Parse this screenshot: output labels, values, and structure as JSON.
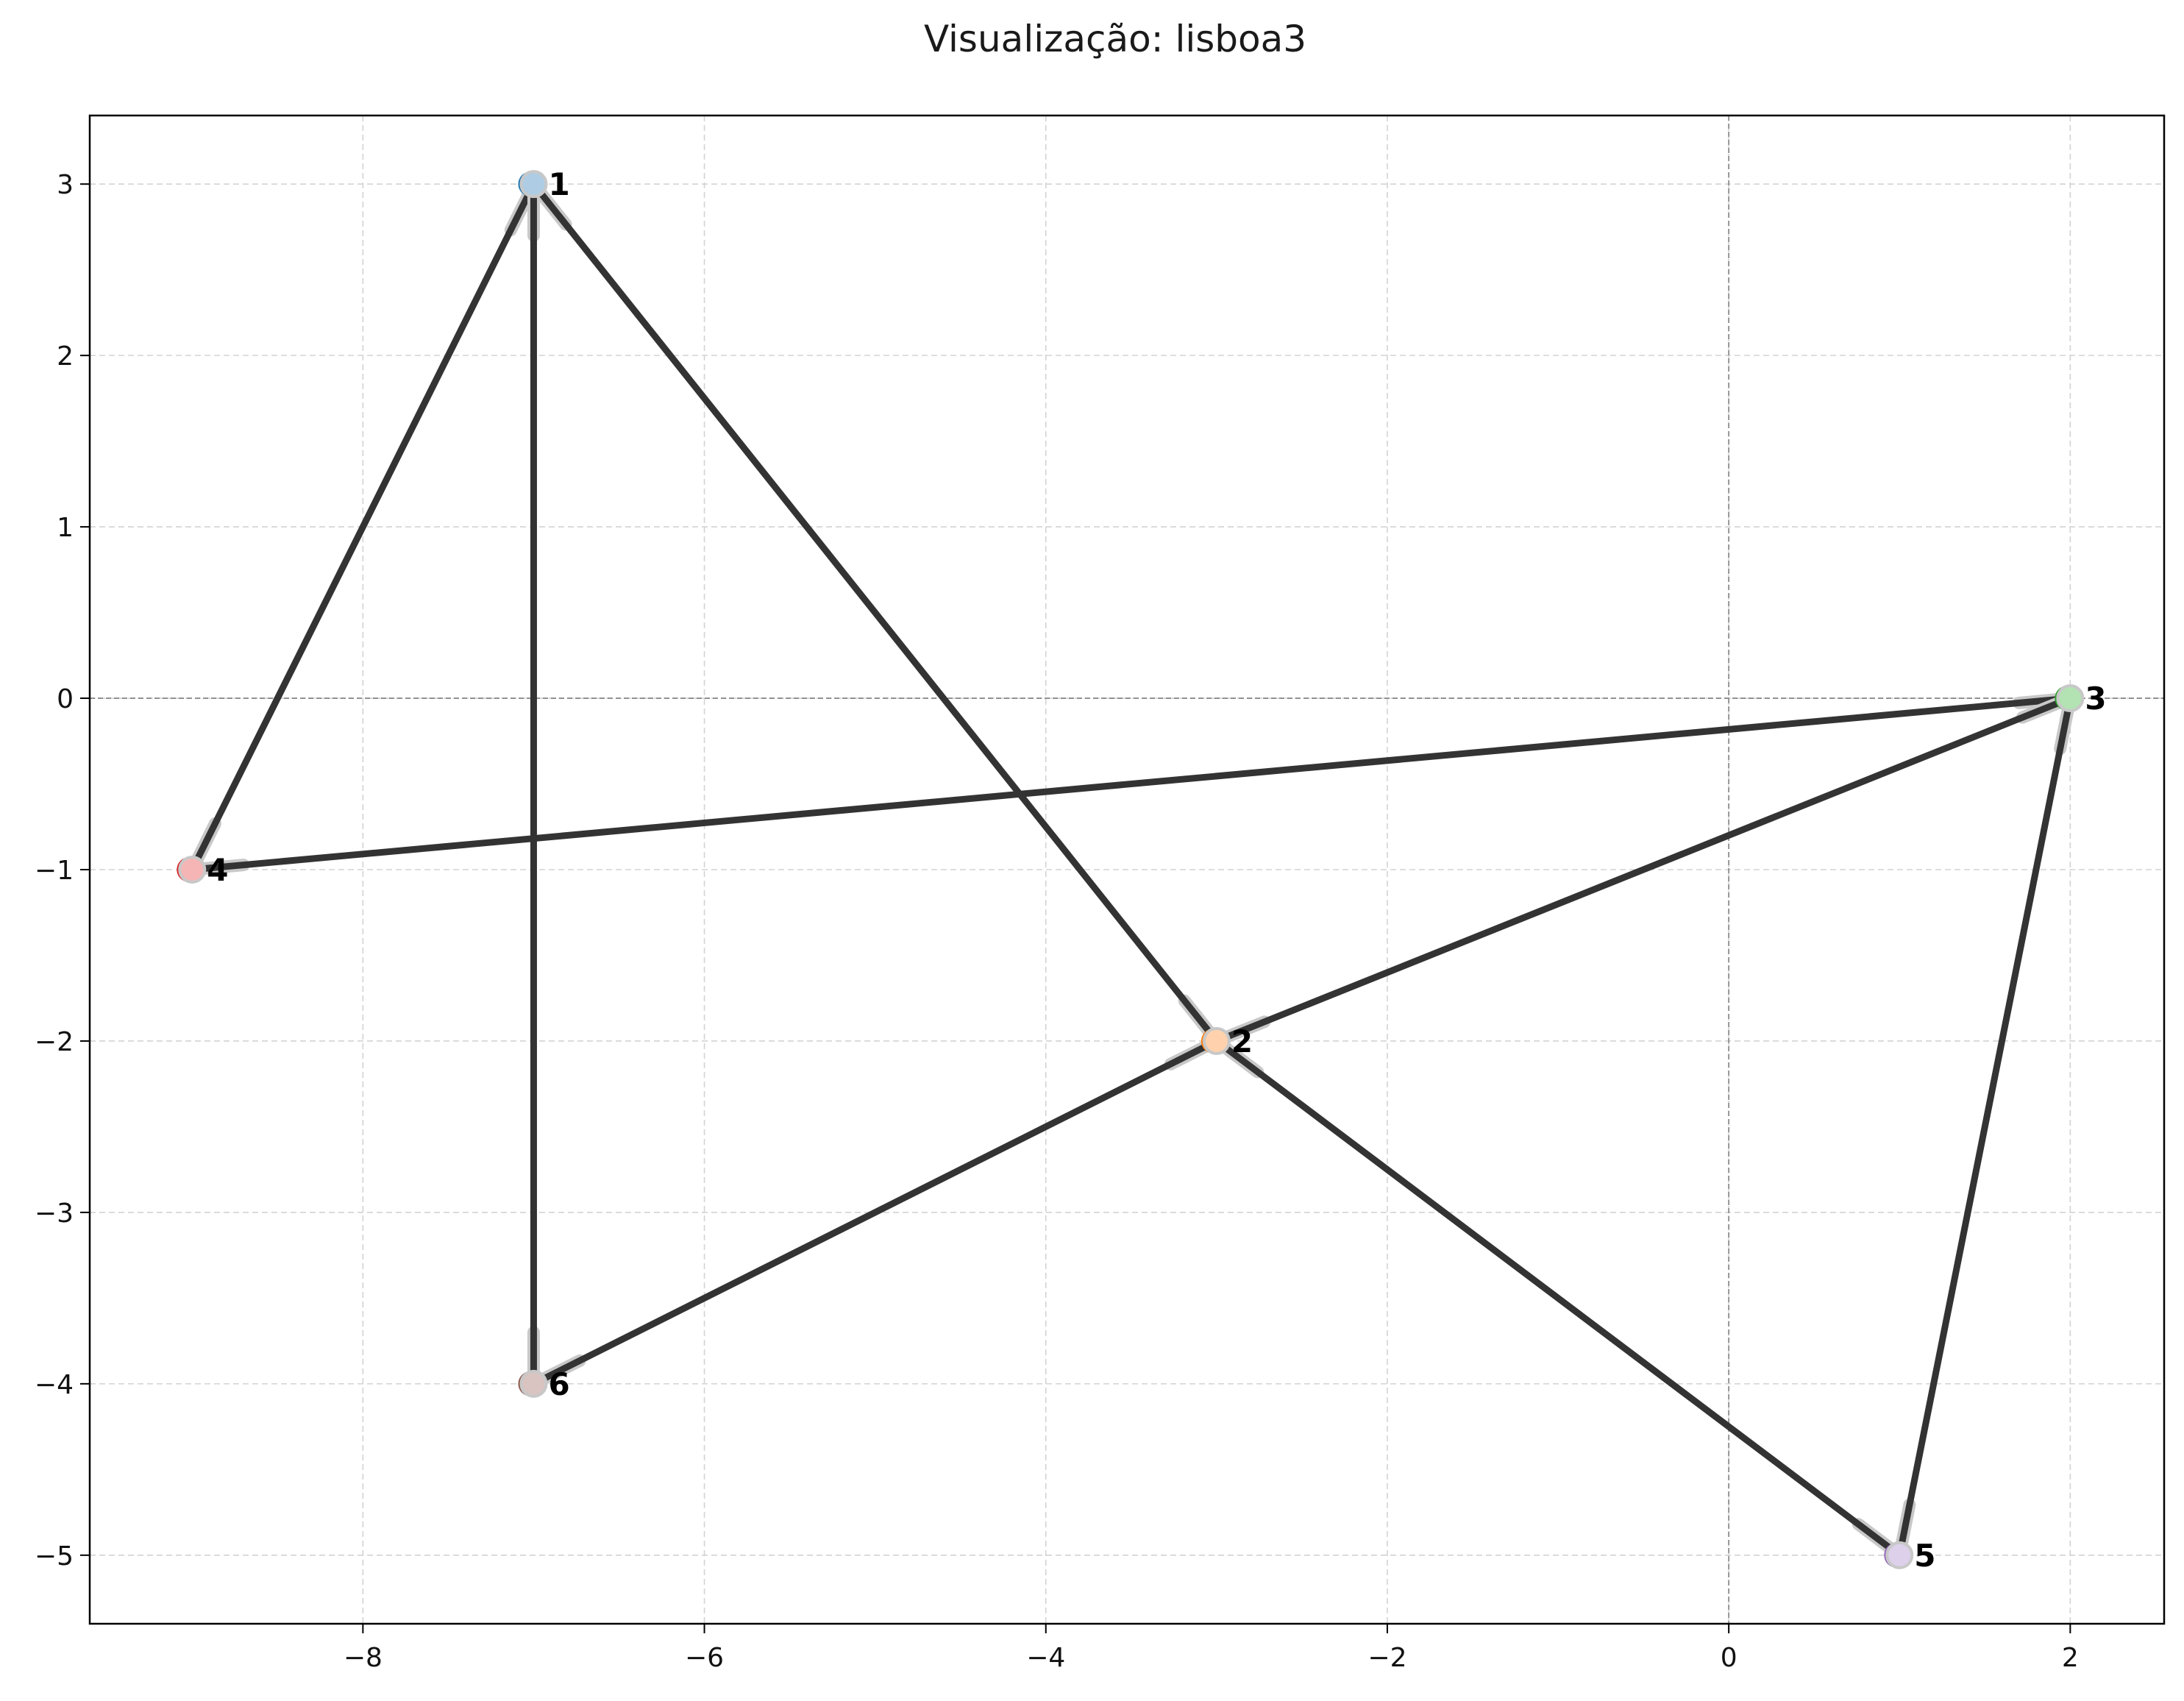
{
  "chart_data": {
    "type": "scatter",
    "title": "Visualização: lisboa3",
    "xlabel": "",
    "ylabel": "",
    "xlim": [
      -9.6,
      2.55
    ],
    "ylim": [
      -5.4,
      3.4
    ],
    "x_ticks": [
      -8,
      -6,
      -4,
      -2,
      0,
      2
    ],
    "y_ticks": [
      -5,
      -4,
      -3,
      -2,
      -1,
      0,
      1,
      2,
      3
    ],
    "grid": true,
    "legend": "none",
    "reference_lines": {
      "x": 0,
      "y": 0
    },
    "nodes": [
      {
        "id": "1",
        "x": -7,
        "y": 3,
        "color": "#aecde4",
        "edge_color": "#1f77b4"
      },
      {
        "id": "2",
        "x": -3,
        "y": -2,
        "color": "#ffd2ad",
        "edge_color": "#ff7f0e"
      },
      {
        "id": "3",
        "x": 2,
        "y": 0,
        "color": "#b3e2b3",
        "edge_color": "#2ca02c"
      },
      {
        "id": "4",
        "x": -9,
        "y": -1,
        "color": "#f5b5b5",
        "edge_color": "#d62728"
      },
      {
        "id": "5",
        "x": 1,
        "y": -5,
        "color": "#dcd0ea",
        "edge_color": "#9467bd"
      },
      {
        "id": "6",
        "x": -7,
        "y": -4,
        "color": "#d9c4c1",
        "edge_color": "#8c564b"
      }
    ],
    "edges": [
      [
        "1",
        "4"
      ],
      [
        "1",
        "6"
      ],
      [
        "1",
        "2"
      ],
      [
        "4",
        "3"
      ],
      [
        "2",
        "3"
      ],
      [
        "2",
        "6"
      ],
      [
        "2",
        "5"
      ],
      [
        "3",
        "5"
      ]
    ],
    "colors": {
      "edge": "#333333",
      "grid": "#d3d3d3",
      "reference_line": "#8c8c8c",
      "axes": "#000000"
    }
  }
}
